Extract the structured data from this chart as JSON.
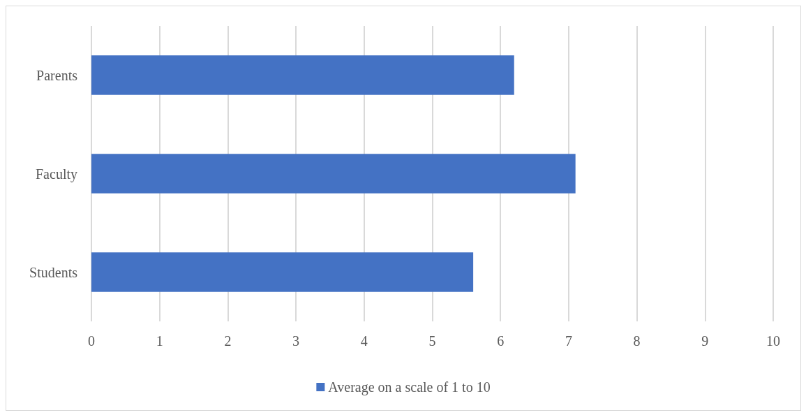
{
  "chart_data": {
    "type": "bar",
    "orientation": "horizontal",
    "categories": [
      "Parents",
      "Faculty",
      "Students"
    ],
    "series": [
      {
        "name": "Average on a scale of 1 to 10",
        "color": "#4472c4",
        "values": [
          6.2,
          7.1,
          5.6
        ]
      }
    ],
    "xlim": [
      0,
      10
    ],
    "xticks": [
      0,
      1,
      2,
      3,
      4,
      5,
      6,
      7,
      8,
      9,
      10
    ],
    "grid": "x",
    "legend": "bottom"
  }
}
